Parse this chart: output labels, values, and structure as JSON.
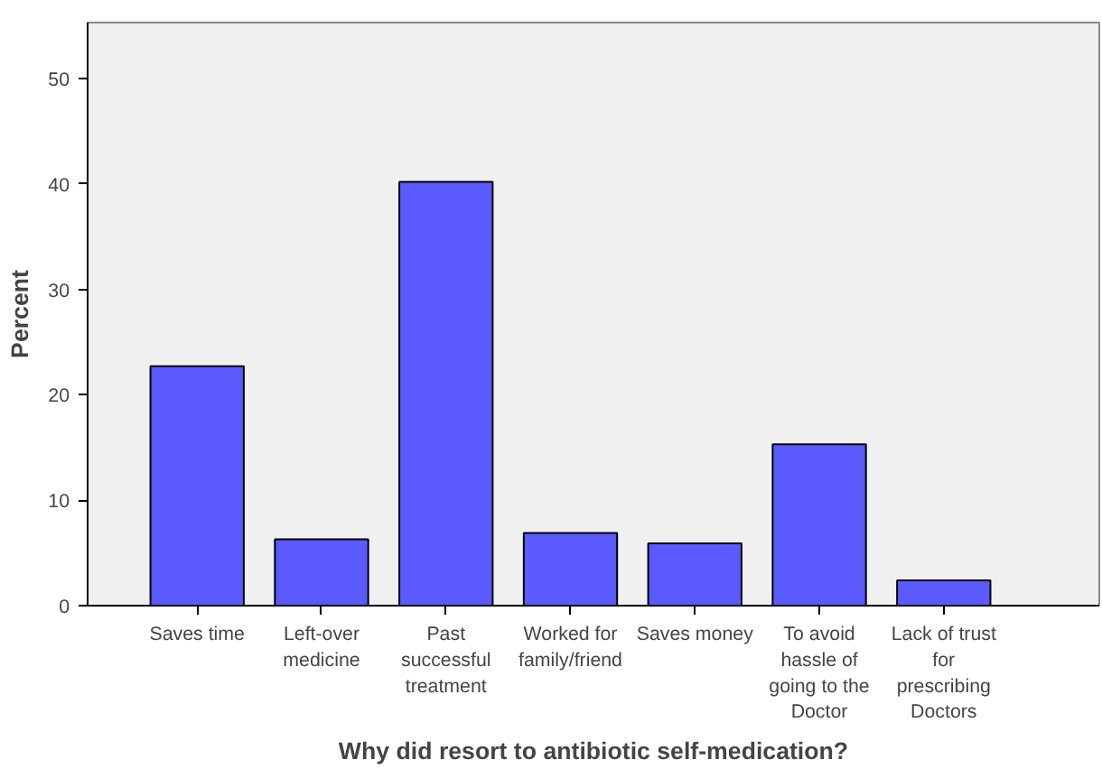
{
  "chart_data": {
    "type": "bar",
    "xlabel": "Why did resort to antibiotic self-medication?",
    "ylabel": "Percent",
    "categories": [
      "Saves time",
      "Left-over medicine",
      "Past successful treatment",
      "Worked for family/friend",
      "Saves money",
      "To avoid hassle of going to the Doctor",
      "Lack of trust for prescribing Doctors"
    ],
    "values": [
      22.7,
      6.3,
      40.2,
      6.9,
      5.9,
      15.3,
      2.4
    ],
    "color": "#5a5aff",
    "ylim": [
      0,
      55.3
    ],
    "yticks": [
      0,
      10,
      20,
      30,
      40,
      50
    ],
    "grid": false
  }
}
